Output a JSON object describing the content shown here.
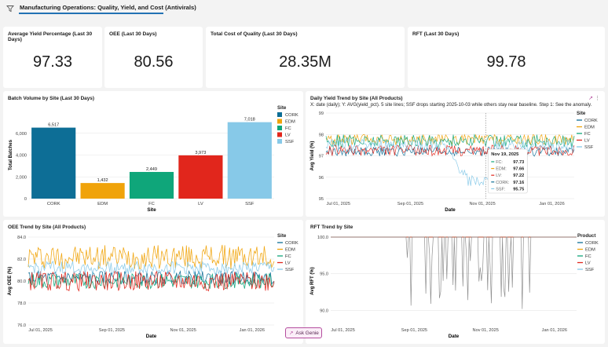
{
  "header": {
    "tab_label": "Manufacturing Operations: Quality, Yield, and Cost (Antivirals)"
  },
  "kpis": [
    {
      "title": "Average Yield Percentage (Last 30 Days)",
      "value": "97.33"
    },
    {
      "title": "OEE (Last 30 Days)",
      "value": "80.56"
    },
    {
      "title": "Total Cost of Quality (Last 30 Days)",
      "value": "28.35M"
    },
    {
      "title": "RFT (Last 30 Days)",
      "value": "99.78"
    }
  ],
  "colors": {
    "CORK": "#0d6e96",
    "EDM": "#f0a30a",
    "FC": "#0fa67a",
    "LV": "#e1261c",
    "SSF": "#87c9e8"
  },
  "batch_chart": {
    "title": "Batch Volume by Site (Last 30 Days)",
    "chart_data": {
      "type": "bar",
      "categories": [
        "CORK",
        "EDM",
        "FC",
        "LV",
        "SSF"
      ],
      "values": [
        6517,
        1432,
        2449,
        3973,
        7018
      ],
      "value_labels": [
        "6,517",
        "1,432",
        "2,449",
        "3,973",
        "7,018"
      ],
      "xlabel": "Site",
      "ylabel": "Total Batches",
      "ylim": [
        0,
        8000
      ],
      "yticks": [
        "0",
        "2,000",
        "4,000",
        "6,000"
      ],
      "legend_title": "Site",
      "legend": [
        "CORK",
        "EDM",
        "FC",
        "LV",
        "SSF"
      ]
    }
  },
  "yield_chart": {
    "title": "Daily Yield Trend by Site (All Products)",
    "subtitle": "X: date (daily); Y: AVG(yield_pct). 5 site lines; SSF drops starting 2025-10-03 while others stay near baseline. Step 1: See the anomaly.",
    "chart_data": {
      "type": "line",
      "xlabel": "Date",
      "ylabel": "Avg Yield (%)",
      "ylim": [
        95,
        99
      ],
      "yticks": [
        "95",
        "96",
        "97",
        "98",
        "99"
      ],
      "xticks": [
        "Jul 01, 2025",
        "Sep 01, 2025",
        "Nov 01, 2025",
        "Jan 01, 2026"
      ],
      "legend_title": "Site",
      "legend": [
        "CORK",
        "EDM",
        "FC",
        "LV",
        "SSF"
      ],
      "series": [
        {
          "name": "CORK",
          "level": 97.2
        },
        {
          "name": "EDM",
          "level": 97.75
        },
        {
          "name": "FC",
          "level": 97.7
        },
        {
          "name": "LV",
          "level": 97.25
        },
        {
          "name": "SSF",
          "level": 97.5,
          "drop_to": 95.8
        }
      ],
      "tooltip": {
        "date": "Nov 19, 2025",
        "rows": [
          {
            "site": "FC:",
            "value": "97.73"
          },
          {
            "site": "EDM:",
            "value": "97.66"
          },
          {
            "site": "LV:",
            "value": "97.22"
          },
          {
            "site": "CORK:",
            "value": "97.16"
          },
          {
            "site": "SSF:",
            "value": "95.75"
          }
        ]
      }
    }
  },
  "oee_chart": {
    "title": "OEE Trend by Site (All Products)",
    "chart_data": {
      "type": "line",
      "xlabel": "Date",
      "ylabel": "Avg OEE (%)",
      "ylim": [
        76,
        84
      ],
      "yticks": [
        "76.0",
        "78.0",
        "80.0",
        "82.0",
        "84.0"
      ],
      "xticks": [
        "Jul 01, 2025",
        "Sep 01, 2025",
        "Nov 01, 2025",
        "Jan 01, 2026"
      ],
      "legend_title": "Site",
      "legend": [
        "CORK",
        "EDM",
        "FC",
        "LV",
        "SSF"
      ],
      "series": [
        {
          "name": "CORK",
          "level": 80.3
        },
        {
          "name": "EDM",
          "level": 82.2
        },
        {
          "name": "FC",
          "level": 80.0
        },
        {
          "name": "LV",
          "level": 80.0
        },
        {
          "name": "SSF",
          "level": 81.2
        }
      ]
    }
  },
  "rft_chart": {
    "title": "RFT Trend by Site",
    "chart_data": {
      "type": "line",
      "xlabel": "Date",
      "ylabel": "Avg RFT (%)",
      "ylim": [
        88,
        100
      ],
      "yticks": [
        "90.0",
        "95.0",
        "100.0"
      ],
      "xticks": [
        "Jul 01, 2025",
        "Sep 01, 2025",
        "Nov 01, 2025",
        "Jan 01, 2026"
      ],
      "legend_title": "Product",
      "legend": [
        "CORK",
        "EDM",
        "FC",
        "LV",
        "SSF"
      ],
      "series": [
        {
          "name": "CORK",
          "level": 100
        },
        {
          "name": "EDM",
          "level": 100
        },
        {
          "name": "FC",
          "level": 100
        },
        {
          "name": "LV",
          "level": 100
        },
        {
          "name": "SSF",
          "level": 100,
          "dips_to": 90
        }
      ]
    }
  },
  "genie": {
    "label": "Ask Genie"
  }
}
